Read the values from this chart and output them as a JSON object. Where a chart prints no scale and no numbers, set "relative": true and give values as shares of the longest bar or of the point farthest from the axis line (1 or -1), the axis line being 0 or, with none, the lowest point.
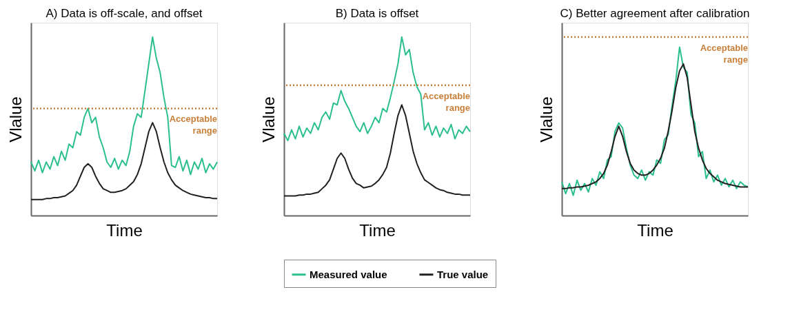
{
  "chart_data": [
    {
      "type": "line",
      "title": "A) Data is off-scale, and offset",
      "xlabel": "Time",
      "ylabel": "Vlalue",
      "relative": true,
      "categories": [
        null,
        null,
        null,
        null,
        null,
        null,
        null,
        null,
        null,
        null,
        null,
        null,
        null,
        null,
        null,
        null,
        null,
        null,
        null,
        null,
        null,
        null,
        null,
        null,
        null,
        null,
        null,
        null,
        null,
        null,
        null,
        null,
        null,
        null,
        null,
        null,
        null,
        null,
        null,
        null,
        null,
        null,
        null,
        null,
        null,
        null,
        null,
        null,
        null,
        null
      ],
      "series": [
        {
          "color": "#2bbf8e",
          "values": [
            0.3,
            0.25,
            0.31,
            0.24,
            0.3,
            0.26,
            0.33,
            0.28,
            0.36,
            0.31,
            0.4,
            0.38,
            0.47,
            0.45,
            0.55,
            0.6,
            0.52,
            0.55,
            0.44,
            0.38,
            0.3,
            0.27,
            0.32,
            0.26,
            0.31,
            0.28,
            0.36,
            0.5,
            0.57,
            0.55,
            0.7,
            0.85,
            1.0,
            0.88,
            0.8,
            0.66,
            0.55,
            0.28,
            0.27,
            0.33,
            0.25,
            0.31,
            0.23,
            0.3,
            0.26,
            0.32,
            0.24,
            0.29,
            0.26,
            0.3
          ]
        },
        {
          "color": "#231f20",
          "values": [
            0.09,
            0.09,
            0.09,
            0.09,
            0.095,
            0.095,
            0.1,
            0.1,
            0.105,
            0.11,
            0.125,
            0.14,
            0.17,
            0.22,
            0.27,
            0.29,
            0.27,
            0.22,
            0.18,
            0.15,
            0.14,
            0.13,
            0.13,
            0.135,
            0.14,
            0.15,
            0.17,
            0.19,
            0.23,
            0.29,
            0.38,
            0.47,
            0.52,
            0.47,
            0.38,
            0.3,
            0.24,
            0.2,
            0.17,
            0.155,
            0.14,
            0.13,
            0.12,
            0.115,
            0.11,
            0.105,
            0.1,
            0.1,
            0.095,
            0.095
          ]
        }
      ],
      "ref_lines": [
        {
          "axis": "y",
          "value": 0.6,
          "label": "Acceptable range",
          "color": "#c8803a",
          "line_style": "dotted"
        }
      ]
    },
    {
      "type": "line",
      "title": "B) Data is offset",
      "xlabel": "Time",
      "ylabel": "Vlalue",
      "relative": true,
      "legend": "bottom",
      "categories": [
        null,
        null,
        null,
        null,
        null,
        null,
        null,
        null,
        null,
        null,
        null,
        null,
        null,
        null,
        null,
        null,
        null,
        null,
        null,
        null,
        null,
        null,
        null,
        null,
        null,
        null,
        null,
        null,
        null,
        null,
        null,
        null,
        null,
        null,
        null,
        null,
        null,
        null,
        null,
        null,
        null,
        null,
        null,
        null,
        null,
        null,
        null,
        null,
        null,
        null
      ],
      "series": [
        {
          "name": "Measured value",
          "color": "#2bbf8e",
          "values": [
            0.46,
            0.42,
            0.48,
            0.43,
            0.5,
            0.44,
            0.49,
            0.46,
            0.52,
            0.48,
            0.55,
            0.58,
            0.54,
            0.63,
            0.62,
            0.7,
            0.64,
            0.6,
            0.55,
            0.5,
            0.47,
            0.52,
            0.46,
            0.5,
            0.55,
            0.52,
            0.6,
            0.58,
            0.66,
            0.75,
            0.85,
            1.0,
            0.9,
            0.93,
            0.8,
            0.72,
            0.68,
            0.48,
            0.52,
            0.45,
            0.5,
            0.44,
            0.49,
            0.46,
            0.51,
            0.43,
            0.48,
            0.46,
            0.5,
            0.47
          ]
        },
        {
          "name": "True value",
          "color": "#231f20",
          "values": [
            0.11,
            0.11,
            0.11,
            0.11,
            0.115,
            0.115,
            0.12,
            0.12,
            0.125,
            0.13,
            0.15,
            0.17,
            0.2,
            0.26,
            0.32,
            0.35,
            0.32,
            0.26,
            0.21,
            0.18,
            0.17,
            0.155,
            0.16,
            0.165,
            0.18,
            0.2,
            0.23,
            0.27,
            0.35,
            0.46,
            0.56,
            0.62,
            0.56,
            0.46,
            0.36,
            0.29,
            0.24,
            0.2,
            0.185,
            0.17,
            0.155,
            0.145,
            0.14,
            0.13,
            0.125,
            0.12,
            0.12,
            0.115,
            0.115,
            0.115
          ]
        }
      ],
      "ref_lines": [
        {
          "axis": "y",
          "value": 0.73,
          "label": "Acceptable range",
          "color": "#c8803a",
          "line_style": "dotted"
        }
      ]
    },
    {
      "type": "line",
      "title": "C) Better agreement after calibration",
      "xlabel": "Time",
      "ylabel": "Vlalue",
      "relative": true,
      "categories": [
        null,
        null,
        null,
        null,
        null,
        null,
        null,
        null,
        null,
        null,
        null,
        null,
        null,
        null,
        null,
        null,
        null,
        null,
        null,
        null,
        null,
        null,
        null,
        null,
        null,
        null,
        null,
        null,
        null,
        null,
        null,
        null,
        null,
        null,
        null,
        null,
        null,
        null,
        null,
        null,
        null,
        null,
        null,
        null,
        null,
        null,
        null,
        null,
        null,
        null
      ],
      "series": [
        {
          "color": "#2bbf8e",
          "values": [
            0.2,
            0.13,
            0.19,
            0.12,
            0.21,
            0.15,
            0.19,
            0.14,
            0.22,
            0.18,
            0.26,
            0.22,
            0.33,
            0.35,
            0.5,
            0.55,
            0.52,
            0.4,
            0.3,
            0.24,
            0.22,
            0.27,
            0.21,
            0.26,
            0.24,
            0.33,
            0.31,
            0.45,
            0.48,
            0.65,
            0.8,
            1.0,
            0.88,
            0.85,
            0.6,
            0.55,
            0.35,
            0.38,
            0.22,
            0.27,
            0.2,
            0.24,
            0.18,
            0.22,
            0.17,
            0.21,
            0.16,
            0.2,
            0.18,
            0.17
          ]
        },
        {
          "color": "#231f20",
          "values": [
            0.16,
            0.16,
            0.165,
            0.165,
            0.17,
            0.17,
            0.175,
            0.18,
            0.19,
            0.2,
            0.22,
            0.25,
            0.3,
            0.38,
            0.47,
            0.53,
            0.47,
            0.38,
            0.31,
            0.27,
            0.25,
            0.24,
            0.24,
            0.25,
            0.27,
            0.3,
            0.34,
            0.4,
            0.5,
            0.62,
            0.76,
            0.86,
            0.9,
            0.82,
            0.66,
            0.5,
            0.4,
            0.33,
            0.28,
            0.25,
            0.23,
            0.21,
            0.2,
            0.19,
            0.185,
            0.18,
            0.175,
            0.17,
            0.17,
            0.17
          ]
        }
      ],
      "ref_lines": [
        {
          "axis": "y",
          "value": 1.06,
          "label": "Acceptable range",
          "color": "#c8803a",
          "line_style": "dotted"
        }
      ]
    }
  ]
}
